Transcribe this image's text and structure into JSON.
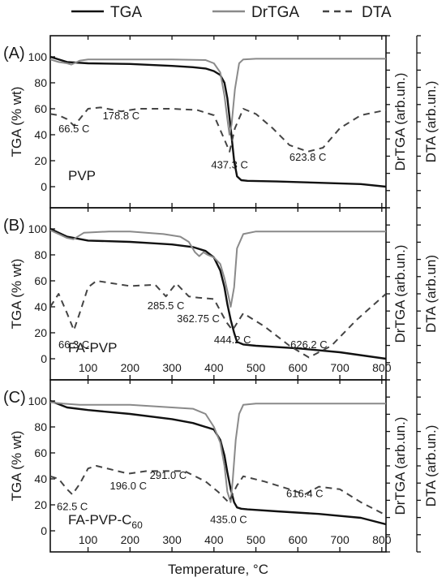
{
  "legend": {
    "entries": [
      {
        "name": "TGA",
        "color": "#111111",
        "dash": "solid"
      },
      {
        "name": "DrTGA",
        "color": "#8a8a8a",
        "dash": "solid"
      },
      {
        "name": "DTA",
        "color": "#444444",
        "dash": "dashed"
      }
    ],
    "placement": "top"
  },
  "xlabel": "Temperature, °C",
  "chart_data": [
    {
      "type": "line",
      "panel": "(A)",
      "sample": "PVP",
      "sample_subscript": "",
      "ylabel_left": "TGA (% wt)",
      "ylabel_right_1": "DrTGA (arb.un.)",
      "ylabel_right_2": "DTA (arb.un.)",
      "xlim": [
        10,
        810
      ],
      "ylim": [
        -5,
        105
      ],
      "x_ticks": [
        100,
        200,
        300,
        400,
        500,
        600,
        700,
        800
      ],
      "y_ticks": [
        0,
        20,
        40,
        60,
        80,
        100
      ],
      "show_x_tick_labels": false,
      "series": [
        {
          "name": "TGA",
          "x": [
            10,
            50,
            100,
            200,
            300,
            350,
            380,
            400,
            415,
            425,
            432,
            440,
            448,
            455,
            465,
            480,
            550,
            650,
            750,
            810
          ],
          "y": [
            100,
            96,
            95,
            94.5,
            93,
            92,
            91,
            89,
            86,
            80,
            68,
            45,
            20,
            8,
            5,
            4.5,
            4,
            3,
            2,
            0
          ]
        },
        {
          "name": "DrTGA",
          "x": [
            10,
            30,
            50,
            60,
            80,
            100,
            200,
            300,
            380,
            400,
            415,
            425,
            432,
            437,
            442,
            450,
            460,
            470,
            500,
            600,
            700,
            810
          ],
          "y": [
            98,
            96,
            95,
            94,
            97,
            98,
            98,
            98,
            97.5,
            95,
            88,
            70,
            52,
            40,
            48,
            75,
            95,
            98,
            98.5,
            98.5,
            98.5,
            98.5
          ]
        },
        {
          "name": "DTA",
          "x": [
            10,
            30,
            50,
            66.5,
            80,
            100,
            130,
            178.8,
            220,
            300,
            360,
            400,
            420,
            437.3,
            450,
            470,
            500,
            540,
            580,
            623.8,
            660,
            700,
            750,
            810
          ],
          "y": [
            56,
            55,
            52,
            47,
            52,
            60,
            61,
            58,
            60,
            60,
            59,
            55,
            40,
            27,
            45,
            60,
            56,
            45,
            32,
            27,
            30,
            45,
            55,
            59
          ]
        }
      ],
      "annotations": [
        {
          "text": "66.5 C",
          "x": 66.5,
          "y": 42
        },
        {
          "text": "178.8 C",
          "x": 178.8,
          "y": 52
        },
        {
          "text": "437.3 C",
          "x": 437.3,
          "y": 14
        },
        {
          "text": "623.8 C",
          "x": 623.8,
          "y": 20
        }
      ]
    },
    {
      "type": "line",
      "panel": "(B)",
      "sample": "FA-PVP",
      "sample_subscript": "",
      "ylabel_left": "TGA (% wt)",
      "ylabel_right_1": "DrTGA (arb.un.)",
      "ylabel_right_2": "DTA (arb.un)",
      "xlim": [
        10,
        810
      ],
      "ylim": [
        -5,
        105
      ],
      "x_ticks": [
        100,
        200,
        300,
        400,
        500,
        600,
        700,
        800
      ],
      "y_ticks": [
        0,
        20,
        40,
        60,
        80,
        100
      ],
      "show_x_tick_labels": true,
      "series": [
        {
          "name": "TGA",
          "x": [
            10,
            50,
            100,
            200,
            250,
            300,
            350,
            380,
            400,
            415,
            425,
            432,
            440,
            448,
            455,
            470,
            500,
            600,
            700,
            810
          ],
          "y": [
            100,
            94,
            91,
            90,
            89,
            88,
            86,
            83,
            78,
            68,
            55,
            42,
            30,
            20,
            13,
            11,
            10,
            8,
            5,
            0
          ]
        },
        {
          "name": "DrTGA",
          "x": [
            10,
            30,
            50,
            65,
            90,
            150,
            200,
            280,
            320,
            340,
            355,
            365,
            375,
            385,
            400,
            415,
            425,
            435,
            440,
            448,
            455,
            470,
            500,
            600,
            700,
            810
          ],
          "y": [
            99,
            96,
            93,
            92,
            97,
            98,
            98,
            96,
            94,
            90,
            82,
            79,
            82,
            80,
            78,
            73,
            62,
            48,
            40,
            55,
            85,
            96,
            98,
            98,
            98,
            98
          ]
        },
        {
          "name": "DTA",
          "x": [
            10,
            30,
            50,
            66.3,
            80,
            100,
            120,
            200,
            260,
            285.5,
            310,
            340,
            362.75,
            400,
            430,
            444.2,
            470,
            520,
            580,
            626.2,
            680,
            740,
            810
          ],
          "y": [
            40,
            50,
            35,
            22,
            35,
            55,
            60,
            56,
            57,
            48,
            58,
            48,
            47,
            46,
            28,
            22,
            35,
            25,
            10,
            1,
            10,
            30,
            50
          ]
        }
      ],
      "annotations": [
        {
          "text": "66.3 C",
          "x": 66.3,
          "y": 8
        },
        {
          "text": "285.5 C",
          "x": 285.5,
          "y": 38
        },
        {
          "text": "362.75 C",
          "x": 362.75,
          "y": 28
        },
        {
          "text": "444.2 C",
          "x": 444.2,
          "y": 12
        },
        {
          "text": "626.2 C",
          "x": 626.2,
          "y": 8
        }
      ]
    },
    {
      "type": "line",
      "panel": "(C)",
      "sample": "FA-PVP-C",
      "sample_subscript": "60",
      "ylabel_left": "TGA (% wt)",
      "ylabel_right_1": "DrTGA (arb.un.)",
      "ylabel_right_2": "DTA (arb.un.)",
      "xlim": [
        10,
        810
      ],
      "ylim": [
        -5,
        105
      ],
      "x_ticks": [
        100,
        200,
        300,
        400,
        500,
        600,
        700,
        800
      ],
      "y_ticks": [
        0,
        20,
        40,
        60,
        80,
        100
      ],
      "show_x_tick_labels": true,
      "series": [
        {
          "name": "TGA",
          "x": [
            10,
            50,
            100,
            200,
            300,
            350,
            400,
            415,
            425,
            432,
            440,
            448,
            455,
            465,
            480,
            550,
            650,
            750,
            810
          ],
          "y": [
            100,
            95,
            93,
            90,
            86,
            83,
            78,
            70,
            58,
            45,
            32,
            22,
            18,
            17,
            16.5,
            15,
            13,
            10,
            5
          ]
        },
        {
          "name": "DrTGA",
          "x": [
            10,
            40,
            80,
            100,
            200,
            250,
            300,
            350,
            380,
            400,
            415,
            425,
            432,
            440,
            445,
            452,
            460,
            470,
            500,
            600,
            700,
            810
          ],
          "y": [
            99,
            98,
            97,
            97,
            97,
            96,
            95,
            94,
            90,
            80,
            68,
            50,
            30,
            22,
            40,
            70,
            90,
            97,
            98,
            98,
            98,
            98
          ]
        },
        {
          "name": "DTA",
          "x": [
            10,
            30,
            50,
            62.5,
            80,
            100,
            120,
            196,
            240,
            291,
            330,
            380,
            410,
            435,
            455,
            470,
            520,
            580,
            616.4,
            650,
            700,
            750,
            810
          ],
          "y": [
            42,
            40,
            32,
            28,
            36,
            48,
            50,
            44,
            46,
            46,
            46,
            38,
            30,
            22,
            35,
            42,
            38,
            32,
            28,
            34,
            32,
            22,
            12
          ]
        }
      ],
      "annotations": [
        {
          "text": "62.5 C",
          "x": 62.5,
          "y": 16
        },
        {
          "text": "196.0 C",
          "x": 196,
          "y": 32
        },
        {
          "text": "291.0 C",
          "x": 291,
          "y": 40
        },
        {
          "text": "435.0 C",
          "x": 435,
          "y": 6
        },
        {
          "text": "616.4 C",
          "x": 616.4,
          "y": 26
        }
      ]
    }
  ]
}
